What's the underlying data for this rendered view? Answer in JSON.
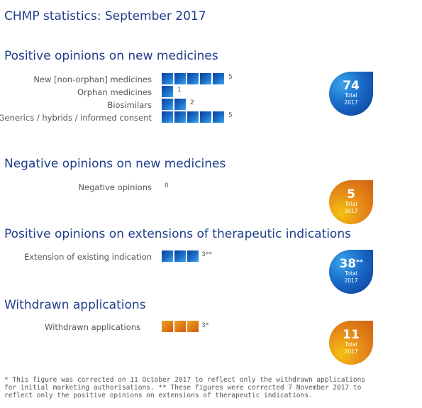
{
  "page_title": "CHMP statistics: September 2017",
  "colors": {
    "title": "#1f3d8c",
    "blue_accent": "#1a6cc8",
    "orange_accent": "#e07f18"
  },
  "sections": {
    "positive": {
      "title": "Positive opinions on new medicines",
      "rows": [
        {
          "label": "New [non-orphan] medicines",
          "value": "5",
          "count": 5
        },
        {
          "label": "Orphan medicines",
          "value": "1",
          "count": 1
        },
        {
          "label": "Biosimilars",
          "value": "2",
          "count": 2
        },
        {
          "label": "Generics / hybrids / informed consent",
          "value": "5",
          "count": 5
        }
      ],
      "total": {
        "number": "74",
        "label": "Total",
        "year": "2017"
      }
    },
    "negative": {
      "title": "Negative opinions on new medicines",
      "rows": [
        {
          "label": "Negative opinions",
          "value": "0",
          "count": 0
        }
      ],
      "total": {
        "number": "5",
        "label": "Total",
        "year": "2017"
      }
    },
    "extensions": {
      "title": "Positive opinions on extensions of therapeutic indications",
      "rows": [
        {
          "label": "Extension of existing indication",
          "value": "3**",
          "count": 3
        }
      ],
      "total": {
        "number": "38",
        "sup": "**",
        "label": "Total",
        "year": "2017"
      }
    },
    "withdrawn": {
      "title": "Withdrawn applications",
      "rows": [
        {
          "label": "Withdrawn applications",
          "value": "3*",
          "count": 3
        }
      ],
      "total": {
        "number": "11",
        "label": "Total",
        "year": "2017"
      }
    }
  },
  "footnote": "* This figure was corrected on 11 October 2017 to reflect only the withdrawn applications for initial marketing authorisations. ** These figures were corrected 7 November 2017 to reflect only the positive opinions on extensions of therapeutic indications."
}
